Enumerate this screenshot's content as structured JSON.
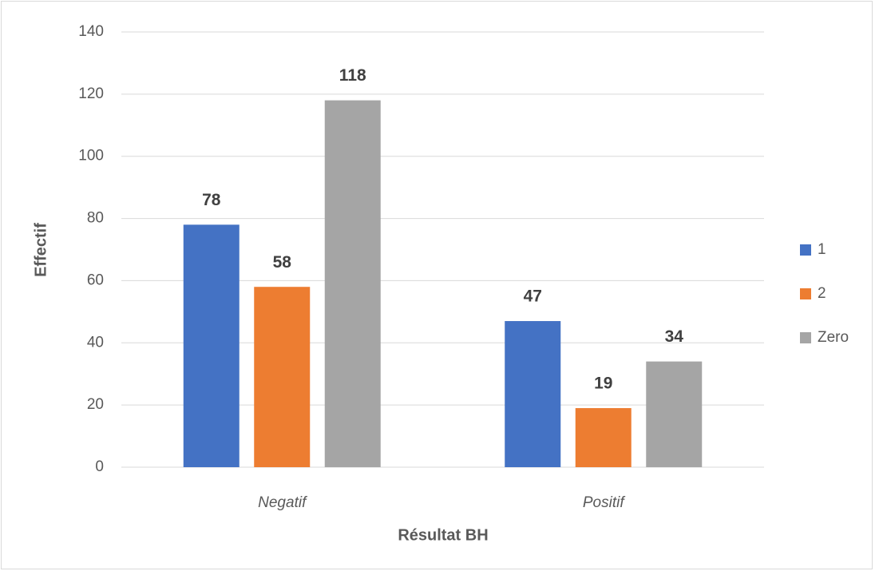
{
  "chart_data": {
    "type": "bar",
    "xlabel": "Résultat BH",
    "ylabel": "Effectif",
    "categories": [
      "Negatif",
      "Positif"
    ],
    "series": [
      {
        "name": "1",
        "color": "#4472c4",
        "values": [
          78,
          47
        ]
      },
      {
        "name": "2",
        "color": "#ed7d31",
        "values": [
          58,
          19
        ]
      },
      {
        "name": "Zero",
        "color": "#a5a5a5",
        "values": [
          118,
          34
        ]
      }
    ],
    "ylim": [
      0,
      140
    ],
    "yticks": [
      0,
      20,
      40,
      60,
      80,
      100,
      120,
      140
    ],
    "grid": true,
    "legend": "right"
  }
}
